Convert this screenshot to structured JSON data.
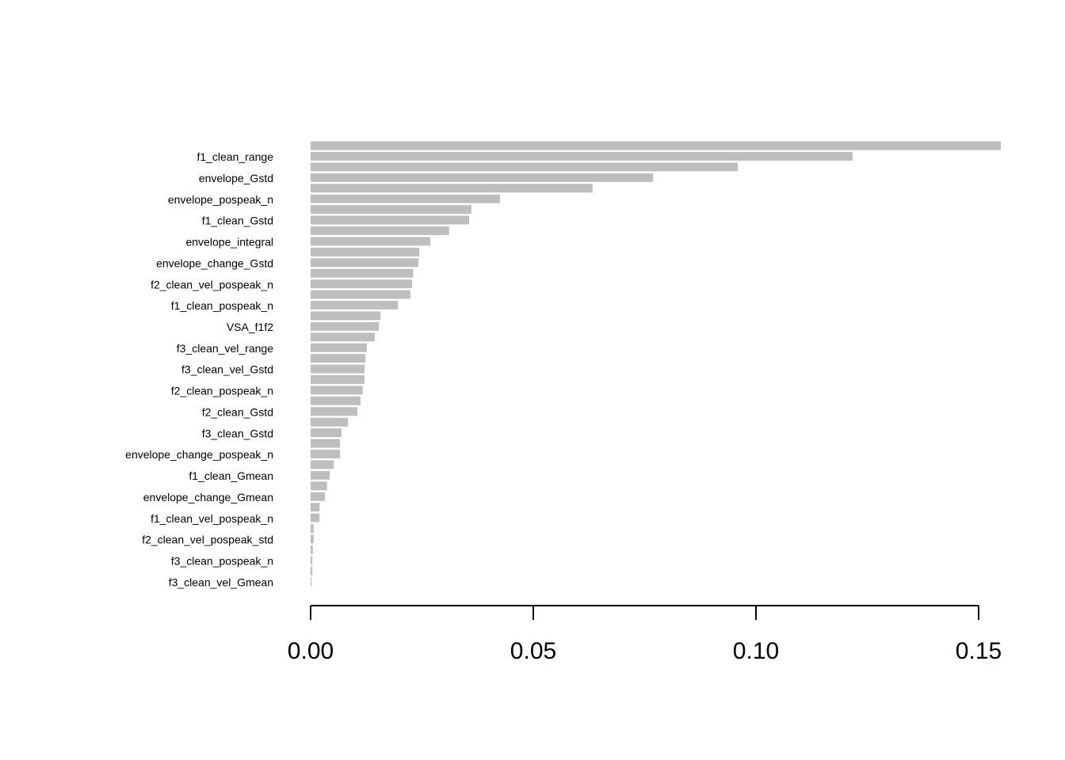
{
  "chart_data": {
    "type": "bar",
    "orientation": "horizontal",
    "color": "#bebebe",
    "categories": [
      null,
      "f1_clean_range",
      null,
      "envelope_Gstd",
      null,
      "envelope_pospeak_n",
      null,
      "f1_clean_Gstd",
      null,
      "envelope_integral",
      null,
      "envelope_change_Gstd",
      null,
      "f2_clean_vel_pospeak_n",
      null,
      "f1_clean_pospeak_n",
      null,
      "VSA_f1f2",
      null,
      "f3_clean_vel_range",
      null,
      "f3_clean_vel_Gstd",
      null,
      "f2_clean_pospeak_n",
      null,
      "f2_clean_Gstd",
      null,
      "f3_clean_Gstd",
      null,
      "envelope_change_pospeak_n",
      null,
      "f1_clean_Gmean",
      null,
      "envelope_change_Gmean",
      null,
      "f1_clean_vel_pospeak_n",
      null,
      "f2_clean_vel_pospeak_std",
      null,
      "f3_clean_pospeak_n",
      null,
      "f3_clean_vel_Gmean"
    ],
    "values": [
      0.155,
      0.1217,
      0.0959,
      0.0769,
      0.0633,
      0.0425,
      0.0361,
      0.0356,
      0.0311,
      0.0269,
      0.0244,
      0.0242,
      0.023,
      0.0228,
      0.0224,
      0.0196,
      0.0157,
      0.0153,
      0.0144,
      0.0126,
      0.0123,
      0.0121,
      0.0121,
      0.0117,
      0.0112,
      0.0105,
      0.0084,
      0.0069,
      0.0066,
      0.0066,
      0.0052,
      0.0043,
      0.0037,
      0.0032,
      0.002,
      0.002,
      0.0007,
      0.0007,
      0.0005,
      0.0004,
      0.0004,
      0.0002
    ],
    "xlim": [
      0,
      0.15
    ],
    "xticks": [
      {
        "value": 0,
        "label": "0.00"
      },
      0.05,
      {
        "value": 0.1,
        "label": "0.10"
      },
      0.15
    ]
  }
}
